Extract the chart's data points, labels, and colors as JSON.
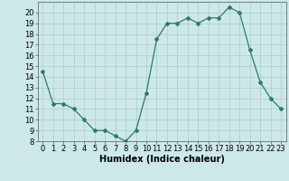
{
  "x": [
    0,
    1,
    2,
    3,
    4,
    5,
    6,
    7,
    8,
    9,
    10,
    11,
    12,
    13,
    14,
    15,
    16,
    17,
    18,
    19,
    20,
    21,
    22,
    23
  ],
  "y": [
    14.5,
    11.5,
    11.5,
    11.0,
    10.0,
    9.0,
    9.0,
    8.5,
    8.0,
    9.0,
    12.5,
    17.5,
    19.0,
    19.0,
    19.5,
    19.0,
    19.5,
    19.5,
    20.5,
    20.0,
    16.5,
    13.5,
    12.0,
    11.0
  ],
  "xlabel": "Humidex (Indice chaleur)",
  "xlim": [
    -0.5,
    23.5
  ],
  "ylim": [
    8,
    21
  ],
  "yticks": [
    8,
    9,
    10,
    11,
    12,
    13,
    14,
    15,
    16,
    17,
    18,
    19,
    20
  ],
  "xticks": [
    0,
    1,
    2,
    3,
    4,
    5,
    6,
    7,
    8,
    9,
    10,
    11,
    12,
    13,
    14,
    15,
    16,
    17,
    18,
    19,
    20,
    21,
    22,
    23
  ],
  "line_color": "#2d7a6e",
  "marker": "D",
  "marker_size": 2.0,
  "bg_color": "#cde8e8",
  "grid_color": "#aacccc",
  "label_fontsize": 7,
  "tick_fontsize": 6
}
